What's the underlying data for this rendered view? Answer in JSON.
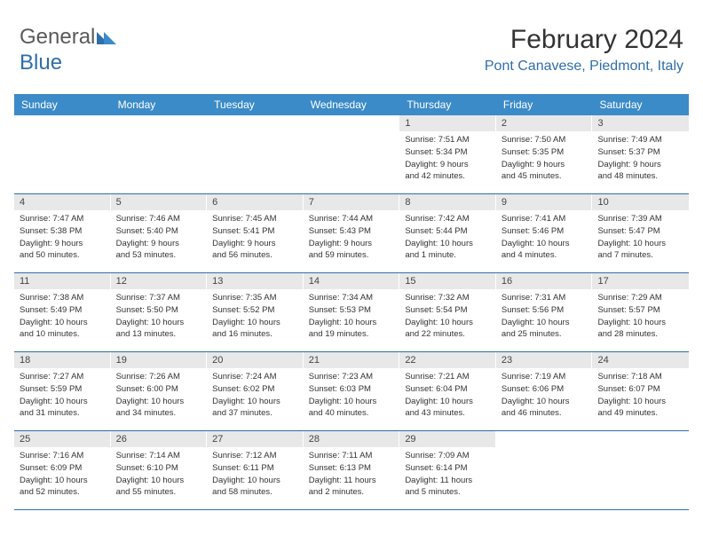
{
  "logo": {
    "part1": "General",
    "part2": "Blue"
  },
  "title": "February 2024",
  "location": "Pont Canavese, Piedmont, Italy",
  "colors": {
    "header_bg": "#3b8bc8",
    "accent": "#2f6ea9",
    "daynum_bg": "#e8e8e8",
    "text": "#333333"
  },
  "day_names": [
    "Sunday",
    "Monday",
    "Tuesday",
    "Wednesday",
    "Thursday",
    "Friday",
    "Saturday"
  ],
  "weeks": [
    [
      {
        "empty": true
      },
      {
        "empty": true
      },
      {
        "empty": true
      },
      {
        "empty": true
      },
      {
        "n": "1",
        "sr": "Sunrise: 7:51 AM",
        "ss": "Sunset: 5:34 PM",
        "d1": "Daylight: 9 hours",
        "d2": "and 42 minutes."
      },
      {
        "n": "2",
        "sr": "Sunrise: 7:50 AM",
        "ss": "Sunset: 5:35 PM",
        "d1": "Daylight: 9 hours",
        "d2": "and 45 minutes."
      },
      {
        "n": "3",
        "sr": "Sunrise: 7:49 AM",
        "ss": "Sunset: 5:37 PM",
        "d1": "Daylight: 9 hours",
        "d2": "and 48 minutes."
      }
    ],
    [
      {
        "n": "4",
        "sr": "Sunrise: 7:47 AM",
        "ss": "Sunset: 5:38 PM",
        "d1": "Daylight: 9 hours",
        "d2": "and 50 minutes."
      },
      {
        "n": "5",
        "sr": "Sunrise: 7:46 AM",
        "ss": "Sunset: 5:40 PM",
        "d1": "Daylight: 9 hours",
        "d2": "and 53 minutes."
      },
      {
        "n": "6",
        "sr": "Sunrise: 7:45 AM",
        "ss": "Sunset: 5:41 PM",
        "d1": "Daylight: 9 hours",
        "d2": "and 56 minutes."
      },
      {
        "n": "7",
        "sr": "Sunrise: 7:44 AM",
        "ss": "Sunset: 5:43 PM",
        "d1": "Daylight: 9 hours",
        "d2": "and 59 minutes."
      },
      {
        "n": "8",
        "sr": "Sunrise: 7:42 AM",
        "ss": "Sunset: 5:44 PM",
        "d1": "Daylight: 10 hours",
        "d2": "and 1 minute."
      },
      {
        "n": "9",
        "sr": "Sunrise: 7:41 AM",
        "ss": "Sunset: 5:46 PM",
        "d1": "Daylight: 10 hours",
        "d2": "and 4 minutes."
      },
      {
        "n": "10",
        "sr": "Sunrise: 7:39 AM",
        "ss": "Sunset: 5:47 PM",
        "d1": "Daylight: 10 hours",
        "d2": "and 7 minutes."
      }
    ],
    [
      {
        "n": "11",
        "sr": "Sunrise: 7:38 AM",
        "ss": "Sunset: 5:49 PM",
        "d1": "Daylight: 10 hours",
        "d2": "and 10 minutes."
      },
      {
        "n": "12",
        "sr": "Sunrise: 7:37 AM",
        "ss": "Sunset: 5:50 PM",
        "d1": "Daylight: 10 hours",
        "d2": "and 13 minutes."
      },
      {
        "n": "13",
        "sr": "Sunrise: 7:35 AM",
        "ss": "Sunset: 5:52 PM",
        "d1": "Daylight: 10 hours",
        "d2": "and 16 minutes."
      },
      {
        "n": "14",
        "sr": "Sunrise: 7:34 AM",
        "ss": "Sunset: 5:53 PM",
        "d1": "Daylight: 10 hours",
        "d2": "and 19 minutes."
      },
      {
        "n": "15",
        "sr": "Sunrise: 7:32 AM",
        "ss": "Sunset: 5:54 PM",
        "d1": "Daylight: 10 hours",
        "d2": "and 22 minutes."
      },
      {
        "n": "16",
        "sr": "Sunrise: 7:31 AM",
        "ss": "Sunset: 5:56 PM",
        "d1": "Daylight: 10 hours",
        "d2": "and 25 minutes."
      },
      {
        "n": "17",
        "sr": "Sunrise: 7:29 AM",
        "ss": "Sunset: 5:57 PM",
        "d1": "Daylight: 10 hours",
        "d2": "and 28 minutes."
      }
    ],
    [
      {
        "n": "18",
        "sr": "Sunrise: 7:27 AM",
        "ss": "Sunset: 5:59 PM",
        "d1": "Daylight: 10 hours",
        "d2": "and 31 minutes."
      },
      {
        "n": "19",
        "sr": "Sunrise: 7:26 AM",
        "ss": "Sunset: 6:00 PM",
        "d1": "Daylight: 10 hours",
        "d2": "and 34 minutes."
      },
      {
        "n": "20",
        "sr": "Sunrise: 7:24 AM",
        "ss": "Sunset: 6:02 PM",
        "d1": "Daylight: 10 hours",
        "d2": "and 37 minutes."
      },
      {
        "n": "21",
        "sr": "Sunrise: 7:23 AM",
        "ss": "Sunset: 6:03 PM",
        "d1": "Daylight: 10 hours",
        "d2": "and 40 minutes."
      },
      {
        "n": "22",
        "sr": "Sunrise: 7:21 AM",
        "ss": "Sunset: 6:04 PM",
        "d1": "Daylight: 10 hours",
        "d2": "and 43 minutes."
      },
      {
        "n": "23",
        "sr": "Sunrise: 7:19 AM",
        "ss": "Sunset: 6:06 PM",
        "d1": "Daylight: 10 hours",
        "d2": "and 46 minutes."
      },
      {
        "n": "24",
        "sr": "Sunrise: 7:18 AM",
        "ss": "Sunset: 6:07 PM",
        "d1": "Daylight: 10 hours",
        "d2": "and 49 minutes."
      }
    ],
    [
      {
        "n": "25",
        "sr": "Sunrise: 7:16 AM",
        "ss": "Sunset: 6:09 PM",
        "d1": "Daylight: 10 hours",
        "d2": "and 52 minutes."
      },
      {
        "n": "26",
        "sr": "Sunrise: 7:14 AM",
        "ss": "Sunset: 6:10 PM",
        "d1": "Daylight: 10 hours",
        "d2": "and 55 minutes."
      },
      {
        "n": "27",
        "sr": "Sunrise: 7:12 AM",
        "ss": "Sunset: 6:11 PM",
        "d1": "Daylight: 10 hours",
        "d2": "and 58 minutes."
      },
      {
        "n": "28",
        "sr": "Sunrise: 7:11 AM",
        "ss": "Sunset: 6:13 PM",
        "d1": "Daylight: 11 hours",
        "d2": "and 2 minutes."
      },
      {
        "n": "29",
        "sr": "Sunrise: 7:09 AM",
        "ss": "Sunset: 6:14 PM",
        "d1": "Daylight: 11 hours",
        "d2": "and 5 minutes."
      },
      {
        "empty": true
      },
      {
        "empty": true
      }
    ]
  ]
}
